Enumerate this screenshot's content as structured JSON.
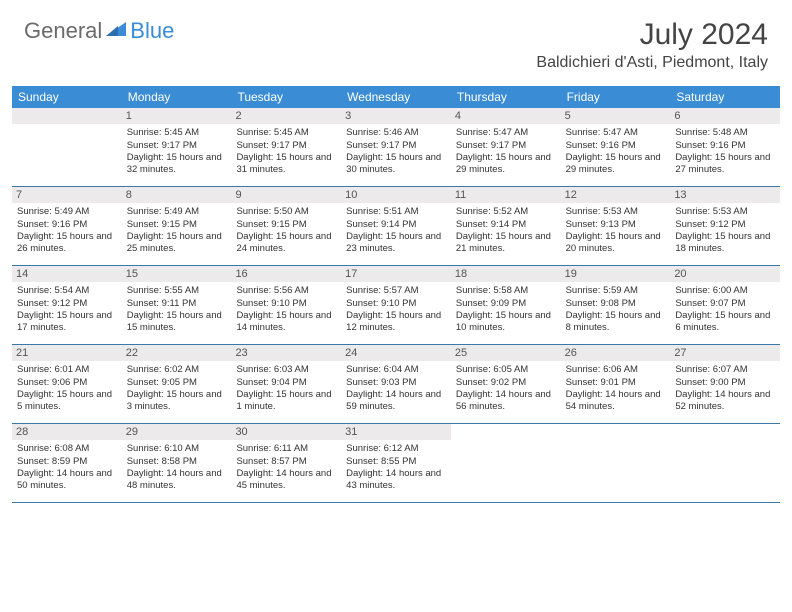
{
  "brand": {
    "part1": "General",
    "part2": "Blue"
  },
  "title": "July 2024",
  "location": "Baldichieri d'Asti, Piedmont, Italy",
  "colors": {
    "header_bar": "#3a8cd4",
    "header_text": "#ffffff",
    "day_header_bg": "#eceaea",
    "rule": "#3a78a8",
    "brand_gray": "#6b6b6b",
    "brand_blue": "#3a8cd4"
  },
  "weekdays": [
    "Sunday",
    "Monday",
    "Tuesday",
    "Wednesday",
    "Thursday",
    "Friday",
    "Saturday"
  ],
  "layout": {
    "first_weekday_index": 1,
    "days_in_month": 31,
    "rows": 5
  },
  "days": [
    {
      "n": 1,
      "sunrise": "5:45 AM",
      "sunset": "9:17 PM",
      "daylight": "15 hours and 32 minutes."
    },
    {
      "n": 2,
      "sunrise": "5:45 AM",
      "sunset": "9:17 PM",
      "daylight": "15 hours and 31 minutes."
    },
    {
      "n": 3,
      "sunrise": "5:46 AM",
      "sunset": "9:17 PM",
      "daylight": "15 hours and 30 minutes."
    },
    {
      "n": 4,
      "sunrise": "5:47 AM",
      "sunset": "9:17 PM",
      "daylight": "15 hours and 29 minutes."
    },
    {
      "n": 5,
      "sunrise": "5:47 AM",
      "sunset": "9:16 PM",
      "daylight": "15 hours and 29 minutes."
    },
    {
      "n": 6,
      "sunrise": "5:48 AM",
      "sunset": "9:16 PM",
      "daylight": "15 hours and 27 minutes."
    },
    {
      "n": 7,
      "sunrise": "5:49 AM",
      "sunset": "9:16 PM",
      "daylight": "15 hours and 26 minutes."
    },
    {
      "n": 8,
      "sunrise": "5:49 AM",
      "sunset": "9:15 PM",
      "daylight": "15 hours and 25 minutes."
    },
    {
      "n": 9,
      "sunrise": "5:50 AM",
      "sunset": "9:15 PM",
      "daylight": "15 hours and 24 minutes."
    },
    {
      "n": 10,
      "sunrise": "5:51 AM",
      "sunset": "9:14 PM",
      "daylight": "15 hours and 23 minutes."
    },
    {
      "n": 11,
      "sunrise": "5:52 AM",
      "sunset": "9:14 PM",
      "daylight": "15 hours and 21 minutes."
    },
    {
      "n": 12,
      "sunrise": "5:53 AM",
      "sunset": "9:13 PM",
      "daylight": "15 hours and 20 minutes."
    },
    {
      "n": 13,
      "sunrise": "5:53 AM",
      "sunset": "9:12 PM",
      "daylight": "15 hours and 18 minutes."
    },
    {
      "n": 14,
      "sunrise": "5:54 AM",
      "sunset": "9:12 PM",
      "daylight": "15 hours and 17 minutes."
    },
    {
      "n": 15,
      "sunrise": "5:55 AM",
      "sunset": "9:11 PM",
      "daylight": "15 hours and 15 minutes."
    },
    {
      "n": 16,
      "sunrise": "5:56 AM",
      "sunset": "9:10 PM",
      "daylight": "15 hours and 14 minutes."
    },
    {
      "n": 17,
      "sunrise": "5:57 AM",
      "sunset": "9:10 PM",
      "daylight": "15 hours and 12 minutes."
    },
    {
      "n": 18,
      "sunrise": "5:58 AM",
      "sunset": "9:09 PM",
      "daylight": "15 hours and 10 minutes."
    },
    {
      "n": 19,
      "sunrise": "5:59 AM",
      "sunset": "9:08 PM",
      "daylight": "15 hours and 8 minutes."
    },
    {
      "n": 20,
      "sunrise": "6:00 AM",
      "sunset": "9:07 PM",
      "daylight": "15 hours and 6 minutes."
    },
    {
      "n": 21,
      "sunrise": "6:01 AM",
      "sunset": "9:06 PM",
      "daylight": "15 hours and 5 minutes."
    },
    {
      "n": 22,
      "sunrise": "6:02 AM",
      "sunset": "9:05 PM",
      "daylight": "15 hours and 3 minutes."
    },
    {
      "n": 23,
      "sunrise": "6:03 AM",
      "sunset": "9:04 PM",
      "daylight": "15 hours and 1 minute."
    },
    {
      "n": 24,
      "sunrise": "6:04 AM",
      "sunset": "9:03 PM",
      "daylight": "14 hours and 59 minutes."
    },
    {
      "n": 25,
      "sunrise": "6:05 AM",
      "sunset": "9:02 PM",
      "daylight": "14 hours and 56 minutes."
    },
    {
      "n": 26,
      "sunrise": "6:06 AM",
      "sunset": "9:01 PM",
      "daylight": "14 hours and 54 minutes."
    },
    {
      "n": 27,
      "sunrise": "6:07 AM",
      "sunset": "9:00 PM",
      "daylight": "14 hours and 52 minutes."
    },
    {
      "n": 28,
      "sunrise": "6:08 AM",
      "sunset": "8:59 PM",
      "daylight": "14 hours and 50 minutes."
    },
    {
      "n": 29,
      "sunrise": "6:10 AM",
      "sunset": "8:58 PM",
      "daylight": "14 hours and 48 minutes."
    },
    {
      "n": 30,
      "sunrise": "6:11 AM",
      "sunset": "8:57 PM",
      "daylight": "14 hours and 45 minutes."
    },
    {
      "n": 31,
      "sunrise": "6:12 AM",
      "sunset": "8:55 PM",
      "daylight": "14 hours and 43 minutes."
    }
  ],
  "labels": {
    "sunrise": "Sunrise:",
    "sunset": "Sunset:",
    "daylight": "Daylight:"
  }
}
